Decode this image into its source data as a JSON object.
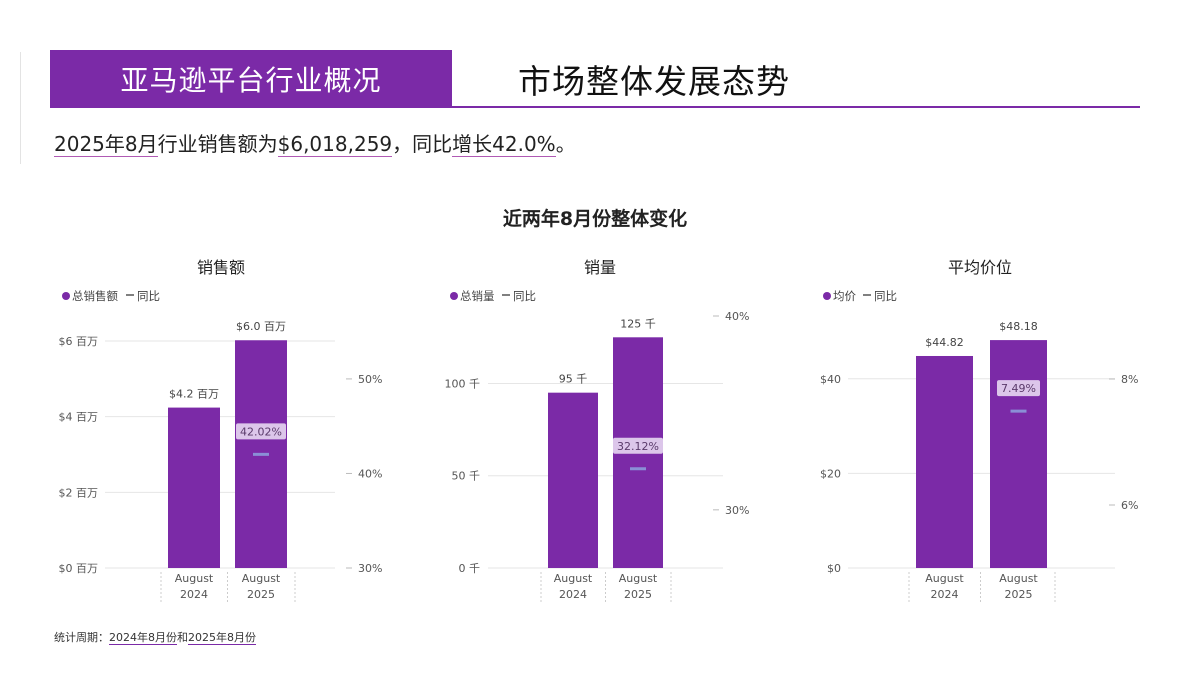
{
  "header": {
    "banner_title": "亚马逊平台行业概况",
    "heading": "市场整体发展态势"
  },
  "summary": {
    "p1": "2025年8月",
    "p2": "行业销售额为",
    "p3": "$6,018,259",
    "p4": "，同比",
    "p5": "增长",
    "p6": "42.0%",
    "p7": "。"
  },
  "section_title": "近两年8月份整体变化",
  "footnote": {
    "prefix": "统计周期：",
    "range1": "2024年8月份",
    "mid": "和",
    "range2": "2025年8月份"
  },
  "colors": {
    "bar": "#7b2aa7",
    "yoy_marker": "#8a8fd6",
    "yoy_label_bg": "#dcc6ea",
    "grid": "#e6e6e6"
  },
  "chart_data": [
    {
      "type": "bar",
      "title": "销售额",
      "legend": [
        "总销售额",
        "同比"
      ],
      "categories": [
        "August 2024",
        "August 2025"
      ],
      "values": [
        4.24,
        6.02
      ],
      "value_labels": [
        "$4.2 百万",
        "$6.0 百万"
      ],
      "y_ticks": [
        0,
        2,
        4,
        6
      ],
      "y_tick_labels": [
        "$0 百万",
        "$2 百万",
        "$4 百万",
        "$6 百万"
      ],
      "ylim": [
        0,
        6
      ],
      "y2_ticks": [
        30,
        40,
        50
      ],
      "y2_tick_labels": [
        "30%",
        "40%",
        "50%"
      ],
      "y2lim": [
        30,
        52
      ],
      "yoy": {
        "category": "August 2025",
        "value": 42.02,
        "label": "42.02%"
      }
    },
    {
      "type": "bar",
      "title": "销量",
      "legend": [
        "总销量",
        "同比"
      ],
      "categories": [
        "August 2024",
        "August 2025"
      ],
      "values": [
        95,
        125
      ],
      "value_labels": [
        "95 千",
        "125 千"
      ],
      "y_ticks": [
        0,
        50,
        100
      ],
      "y_tick_labels": [
        "0 千",
        "50 千",
        "100 千"
      ],
      "ylim": [
        0,
        136
      ],
      "y2_ticks": [
        30,
        40
      ],
      "y2_tick_labels": [
        "30%",
        "40%"
      ],
      "y2lim": [
        27,
        40
      ],
      "yoy": {
        "category": "August 2025",
        "value": 32.12,
        "label": "32.12%"
      }
    },
    {
      "type": "bar",
      "title": "平均价位",
      "legend": [
        "均价",
        "同比"
      ],
      "categories": [
        "August 2024",
        "August 2025"
      ],
      "values": [
        44.82,
        48.18
      ],
      "value_labels": [
        "$44.82",
        "$48.18"
      ],
      "y_ticks": [
        0,
        20,
        40
      ],
      "y_tick_labels": [
        "$0",
        "$20",
        "$40"
      ],
      "ylim": [
        0,
        48.2
      ],
      "y2_ticks": [
        6,
        8
      ],
      "y2_tick_labels": [
        "6%",
        "8%"
      ],
      "y2lim": [
        5,
        8
      ],
      "yoy": {
        "category": "August 2025",
        "value": 7.49,
        "label": "7.49%"
      }
    }
  ]
}
